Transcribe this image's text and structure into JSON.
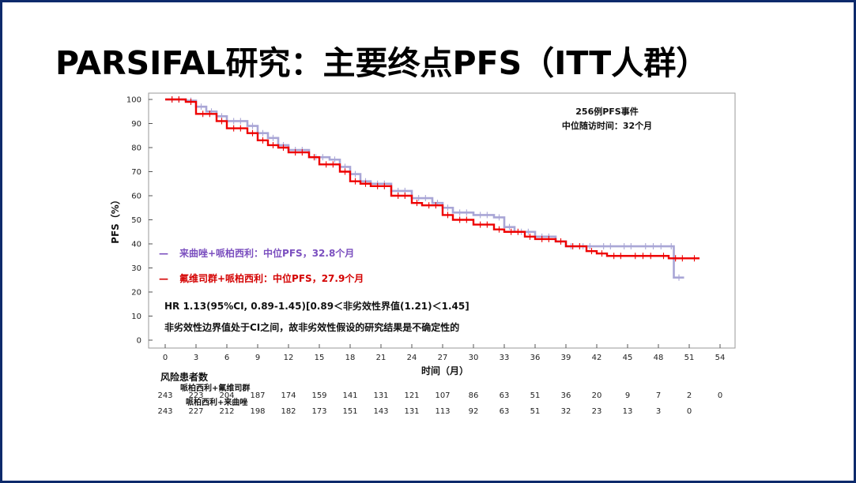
{
  "slide": {
    "title": "PARSIFAL研究：主要终点PFS（ITT人群）",
    "frame_color": "#0d2a6b"
  },
  "chart_data": {
    "type": "line",
    "subtype": "kaplan-meier",
    "title": "",
    "xlabel": "时间（月）",
    "ylabel": "PFS（%）",
    "xlim": [
      0,
      54
    ],
    "ylim": [
      0,
      100
    ],
    "x_ticks": [
      0,
      3,
      6,
      9,
      12,
      15,
      18,
      21,
      24,
      27,
      30,
      33,
      36,
      39,
      42,
      45,
      48,
      51,
      54
    ],
    "y_ticks": [
      0,
      10,
      20,
      30,
      40,
      50,
      60,
      70,
      80,
      90,
      100
    ],
    "grid": false,
    "annotations": {
      "events": "256例PFS事件",
      "followup": "中位随访时间：32个月",
      "hr": "HR 1.13(95%CI, 0.89-1.45)[0.89＜非劣效性界值(1.21)＜1.45]",
      "conclusion": "非劣效性边界值处于CI之间，故非劣效性假设的研究结果是不确定性的"
    },
    "legend": [
      {
        "label": "来曲唑+哌柏西利：中位PFS，32.8个月",
        "color": "#7b4fbf",
        "marker": "—"
      },
      {
        "label": "氟维司群+哌柏西利：中位PFS，27.9个月",
        "color": "#d40000",
        "marker": "—"
      }
    ],
    "series": [
      {
        "name": "来曲唑+哌柏西利",
        "color": "#a9a6d6",
        "points": [
          [
            0,
            100
          ],
          [
            2,
            99.5
          ],
          [
            3,
            97
          ],
          [
            4,
            95
          ],
          [
            5,
            93
          ],
          [
            6,
            91
          ],
          [
            8,
            89
          ],
          [
            9,
            86
          ],
          [
            10,
            84
          ],
          [
            11,
            81
          ],
          [
            12,
            79
          ],
          [
            14,
            76
          ],
          [
            16,
            75
          ],
          [
            17,
            72
          ],
          [
            18,
            69
          ],
          [
            19,
            66
          ],
          [
            20,
            65
          ],
          [
            22,
            62
          ],
          [
            24,
            59
          ],
          [
            26,
            57
          ],
          [
            27,
            55
          ],
          [
            28,
            53
          ],
          [
            30,
            52
          ],
          [
            32,
            51
          ],
          [
            33,
            47
          ],
          [
            34,
            45
          ],
          [
            36,
            43
          ],
          [
            38,
            41
          ],
          [
            39,
            39
          ],
          [
            40,
            39
          ],
          [
            42,
            39
          ],
          [
            44,
            39
          ],
          [
            46,
            39
          ],
          [
            49,
            39
          ],
          [
            49.5,
            26
          ],
          [
            50.5,
            26
          ]
        ]
      },
      {
        "name": "氟维司群+哌柏西利",
        "color": "#ee0000",
        "points": [
          [
            0,
            100
          ],
          [
            2,
            99
          ],
          [
            3,
            94
          ],
          [
            5,
            91
          ],
          [
            6,
            88
          ],
          [
            8,
            86
          ],
          [
            9,
            83
          ],
          [
            10,
            81
          ],
          [
            11,
            80
          ],
          [
            12,
            78
          ],
          [
            14,
            76
          ],
          [
            15,
            73
          ],
          [
            17,
            70
          ],
          [
            18,
            66
          ],
          [
            19,
            65
          ],
          [
            20,
            64
          ],
          [
            22,
            60
          ],
          [
            24,
            57
          ],
          [
            25,
            56
          ],
          [
            27,
            52
          ],
          [
            28,
            50
          ],
          [
            30,
            48
          ],
          [
            32,
            46
          ],
          [
            33,
            45
          ],
          [
            35,
            43
          ],
          [
            36,
            42
          ],
          [
            38,
            41
          ],
          [
            39,
            39
          ],
          [
            41,
            37
          ],
          [
            42,
            36
          ],
          [
            43,
            35
          ],
          [
            45,
            35
          ],
          [
            48,
            35
          ],
          [
            49,
            34
          ],
          [
            51,
            34
          ],
          [
            52,
            34
          ]
        ]
      }
    ],
    "risk_table": {
      "title": "风险患者数",
      "rows": [
        {
          "label": "哌柏西利+氟维司群",
          "values": [
            "243",
            "223",
            "204",
            "187",
            "174",
            "159",
            "141",
            "131",
            "121",
            "107",
            "86",
            "63",
            "51",
            "36",
            "20",
            "9",
            "7",
            "2",
            "0"
          ]
        },
        {
          "label": "哌柏西利+来曲唑",
          "values": [
            "243",
            "227",
            "212",
            "198",
            "182",
            "173",
            "151",
            "143",
            "131",
            "113",
            "92",
            "63",
            "51",
            "32",
            "23",
            "13",
            "3",
            "0",
            ""
          ]
        }
      ]
    }
  }
}
